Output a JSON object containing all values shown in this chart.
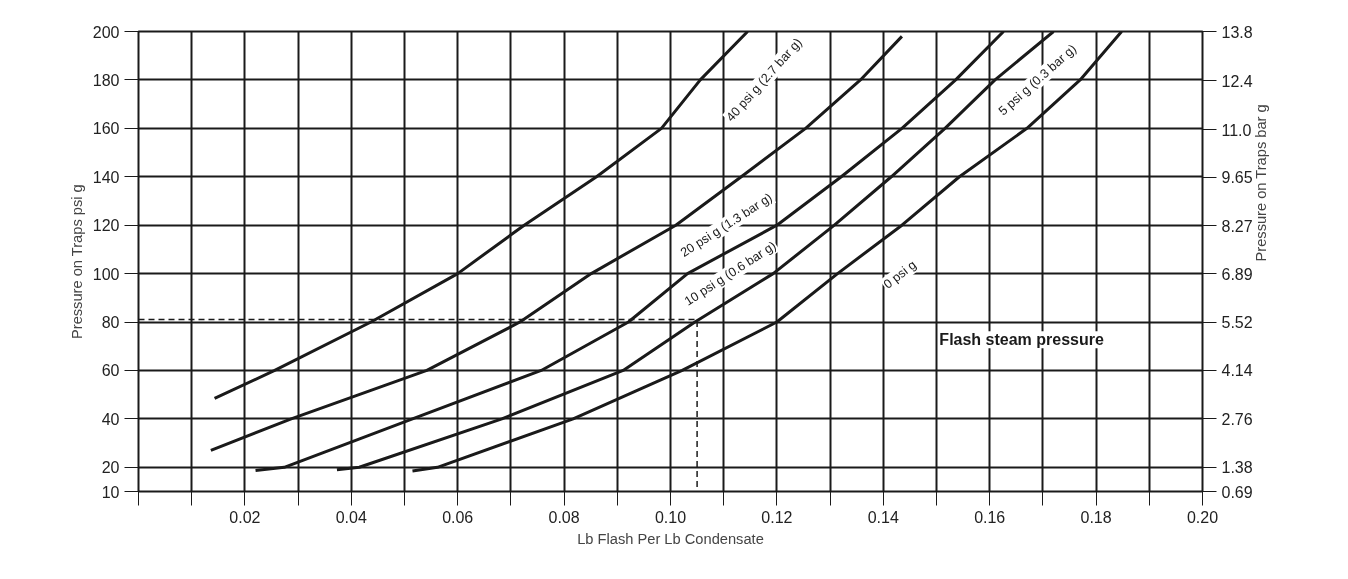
{
  "chart_data": {
    "type": "line",
    "xlabel": "Lb Flash Per Lb Condensate",
    "ylabel": "Pressure on Traps psi g",
    "y2label": "Pressure on Traps bar g",
    "annotations": [
      "Flash steam pressure"
    ],
    "xlim": [
      0,
      0.2
    ],
    "xticks": [
      {
        "value": 0,
        "label": null
      },
      {
        "value": 0.01,
        "label": null
      },
      0.02,
      {
        "value": 0.03,
        "label": null
      },
      0.04,
      {
        "value": 0.05,
        "label": null
      },
      0.06,
      {
        "value": 0.07,
        "label": null
      },
      0.08,
      {
        "value": 0.09,
        "label": null
      },
      {
        "value": 0.1,
        "label": "0.10"
      },
      {
        "value": 0.11,
        "label": null
      },
      0.12,
      {
        "value": 0.13,
        "label": null
      },
      0.14,
      {
        "value": 0.15,
        "label": null
      },
      0.16,
      {
        "value": 0.17,
        "label": null
      },
      0.18,
      {
        "value": 0.19,
        "label": null
      },
      {
        "value": 0.2,
        "label": "0.20"
      }
    ],
    "ylim": [
      10,
      200
    ],
    "yticks": [
      10,
      20,
      40,
      60,
      80,
      100,
      120,
      140,
      160,
      180,
      200
    ],
    "y2lim": [
      0.69,
      13.8
    ],
    "y2ticks": [
      0.69,
      1.38,
      2.76,
      4.14,
      5.52,
      6.89,
      8.27,
      9.65,
      {
        "value": 11,
        "label": "11.0"
      },
      12.4,
      13.8
    ],
    "grid": true,
    "marker": "none",
    "line_style": "solid",
    "series": [
      {
        "name": "40 psi g (2.7 bar g)",
        "color": "#1a1a1a",
        "x": [
          0.0143,
          0.0256,
          0.0437,
          0.06,
          0.0725,
          0.0861,
          0.0983,
          0.1056,
          0.1145
        ],
        "values": [
          48.5,
          60,
          80,
          100,
          120,
          140,
          160,
          180,
          200
        ]
      },
      {
        "name": "20 psi g (1.3 bar g)",
        "color": "#1a1a1a",
        "x": [
          0.0136,
          0.0287,
          0.0542,
          0.0717,
          0.0851,
          0.101,
          0.1133,
          0.1254,
          0.1357,
          0.1435
        ],
        "values": [
          27,
          40,
          60,
          80,
          100,
          120,
          140,
          160,
          180,
          198
        ]
      },
      {
        "name": "10 psi g (0.6 bar g)",
        "color": "#1a1a1a",
        "x": [
          0.022,
          0.0274,
          0.0515,
          0.0757,
          0.0921,
          0.1032,
          0.12,
          0.1321,
          0.1435,
          0.1536,
          0.1626
        ],
        "values": [
          18.7,
          20,
          40,
          60,
          80,
          100,
          120,
          140,
          160,
          180,
          200
        ]
      },
      {
        "name": "5 psi g (0.3 bar g)",
        "color": "#1a1a1a",
        "x": [
          0.0373,
          0.0415,
          0.0683,
          0.0911,
          0.1046,
          0.1193,
          0.1308,
          0.1415,
          0.1516,
          0.161,
          0.172
        ],
        "values": [
          19,
          20,
          40,
          60,
          80,
          100,
          120,
          140,
          160,
          180,
          200
        ]
      },
      {
        "name": "0  psi g",
        "color": "#1a1a1a",
        "x": [
          0.0515,
          0.0562,
          0.0817,
          0.1022,
          0.12,
          0.1314,
          0.1435,
          0.1543,
          0.167,
          0.177,
          0.1848
        ],
        "values": [
          18.5,
          20,
          40,
          60,
          80,
          100,
          120,
          140,
          160,
          180,
          200
        ]
      },
      {
        "color": "#1a1a1a",
        "line_style": "dashed",
        "x": [
          0,
          0.105,
          0.105
        ],
        "values": [
          81,
          81,
          10
        ]
      }
    ]
  }
}
